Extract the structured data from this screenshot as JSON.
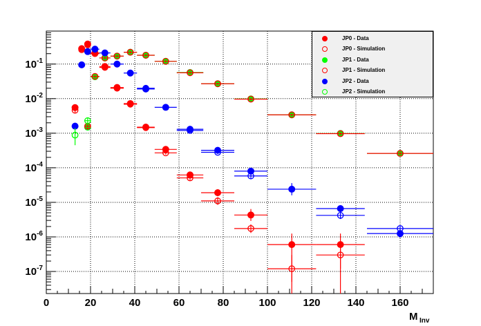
{
  "chart_data": {
    "type": "scatter",
    "xlabel": "M",
    "xlabel_sub": "Inv",
    "ylabel": "",
    "xlim": [
      0,
      175
    ],
    "ylim": [
      2.3e-08,
      0.9
    ],
    "yscale": "log",
    "grid": true,
    "legend_position": "top-right",
    "x_ticks": [
      "0",
      "20",
      "40",
      "60",
      "80",
      "100",
      "120",
      "140",
      "160"
    ],
    "y_ticks": [
      {
        "value": 1e-07,
        "base": "10",
        "exp": "-7"
      },
      {
        "value": 1e-06,
        "base": "10",
        "exp": "-6"
      },
      {
        "value": 1e-05,
        "base": "10",
        "exp": "-5"
      },
      {
        "value": 0.0001,
        "base": "10",
        "exp": "-4"
      },
      {
        "value": 0.001,
        "base": "10",
        "exp": "-3"
      },
      {
        "value": 0.01,
        "base": "10",
        "exp": "-2"
      },
      {
        "value": 0.1,
        "base": "10",
        "exp": "-1"
      }
    ],
    "series": [
      {
        "name": "JP0 - Data",
        "color": "#ff0000",
        "marker": "filled",
        "points": [
          {
            "x": 13,
            "y": 0.0055,
            "xerr": 0,
            "ylo": 0.0045,
            "yhi": 0.0065
          },
          {
            "x": 16,
            "y": 0.28,
            "xerr": 1.5,
            "ylo": 0.25,
            "yhi": 0.31
          },
          {
            "x": 18.7,
            "y": 0.38,
            "xerr": 1.3,
            "ylo": 0.34,
            "yhi": 0.42
          },
          {
            "x": 22,
            "y": 0.21,
            "xerr": 2,
            "ylo": 0.19,
            "yhi": 0.23
          },
          {
            "x": 26.5,
            "y": 0.085,
            "xerr": 2.5,
            "ylo": 0.078,
            "yhi": 0.093
          },
          {
            "x": 32,
            "y": 0.021,
            "xerr": 3,
            "ylo": 0.019,
            "yhi": 0.023
          },
          {
            "x": 38,
            "y": 0.0072,
            "xerr": 3,
            "ylo": 0.0065,
            "yhi": 0.0079
          },
          {
            "x": 45,
            "y": 0.0015,
            "xerr": 4,
            "ylo": 0.0013,
            "yhi": 0.0017
          },
          {
            "x": 54,
            "y": 0.00034,
            "xerr": 5,
            "ylo": 0.0003,
            "yhi": 0.00038
          },
          {
            "x": 65,
            "y": 6.2e-05,
            "xerr": 6,
            "ylo": 5.3e-05,
            "yhi": 7.2e-05
          },
          {
            "x": 77.5,
            "y": 1.9e-05,
            "xerr": 7.5,
            "ylo": 1.5e-05,
            "yhi": 2.4e-05
          },
          {
            "x": 92.5,
            "y": 4.3e-06,
            "xerr": 7.5,
            "ylo": 2.9e-06,
            "yhi": 6.4e-06
          },
          {
            "x": 111,
            "y": 6e-07,
            "xerr": 11,
            "ylo": 2.3e-08,
            "yhi": 1.25e-06
          },
          {
            "x": 133,
            "y": 6e-07,
            "xerr": 11,
            "ylo": 2.3e-08,
            "yhi": 1.25e-06
          }
        ]
      },
      {
        "name": "JP0 - Simulation",
        "color": "#ff0000",
        "marker": "open",
        "points": [
          {
            "x": 13,
            "y": 0.0046,
            "xerr": 0,
            "ylo": 0.0038,
            "yhi": 0.0055
          },
          {
            "x": 16,
            "y": 0.26,
            "xerr": 1.5,
            "ylo": 0.23,
            "yhi": 0.29
          },
          {
            "x": 18.7,
            "y": 0.36,
            "xerr": 1.3,
            "ylo": 0.32,
            "yhi": 0.4
          },
          {
            "x": 22,
            "y": 0.2,
            "xerr": 2,
            "ylo": 0.18,
            "yhi": 0.22
          },
          {
            "x": 26.5,
            "y": 0.08,
            "xerr": 2.5,
            "ylo": 0.073,
            "yhi": 0.088
          },
          {
            "x": 32,
            "y": 0.02,
            "xerr": 3,
            "ylo": 0.018,
            "yhi": 0.022
          },
          {
            "x": 38,
            "y": 0.0069,
            "xerr": 3,
            "ylo": 0.0062,
            "yhi": 0.0076
          },
          {
            "x": 45,
            "y": 0.00145,
            "xerr": 4,
            "ylo": 0.0013,
            "yhi": 0.0016
          },
          {
            "x": 54,
            "y": 0.00027,
            "xerr": 5,
            "ylo": 0.00024,
            "yhi": 0.0003
          },
          {
            "x": 65,
            "y": 5.1e-05,
            "xerr": 6,
            "ylo": 4.4e-05,
            "yhi": 5.9e-05
          },
          {
            "x": 77.5,
            "y": 1.1e-05,
            "xerr": 7.5,
            "ylo": 8.5e-06,
            "yhi": 1.4e-05
          },
          {
            "x": 92.5,
            "y": 1.75e-06,
            "xerr": 7.5,
            "ylo": 1.3e-06,
            "yhi": 2.3e-06
          },
          {
            "x": 111,
            "y": 1.2e-07,
            "xerr": 11,
            "ylo": 5e-08,
            "yhi": 3e-07
          },
          {
            "x": 133,
            "y": 3e-07,
            "xerr": 11,
            "ylo": 1.2e-07,
            "yhi": 6e-07
          }
        ]
      },
      {
        "name": "JP1 - Data",
        "color": "#00ff00",
        "marker": "filled",
        "points": [
          {
            "x": 18.7,
            "y": 0.0015,
            "xerr": 1.3,
            "ylo": 0.0012,
            "yhi": 0.0019
          },
          {
            "x": 22,
            "y": 0.043,
            "xerr": 2,
            "ylo": 0.038,
            "yhi": 0.048
          },
          {
            "x": 26.5,
            "y": 0.15,
            "xerr": 2.5,
            "ylo": 0.135,
            "yhi": 0.165
          },
          {
            "x": 32,
            "y": 0.17,
            "xerr": 3,
            "ylo": 0.155,
            "yhi": 0.185
          },
          {
            "x": 38,
            "y": 0.22,
            "xerr": 3,
            "ylo": 0.2,
            "yhi": 0.24
          },
          {
            "x": 45,
            "y": 0.18,
            "xerr": 4,
            "ylo": 0.165,
            "yhi": 0.195
          },
          {
            "x": 54,
            "y": 0.12,
            "xerr": 5,
            "ylo": 0.11,
            "yhi": 0.13
          },
          {
            "x": 65,
            "y": 0.057,
            "xerr": 6,
            "ylo": 0.052,
            "yhi": 0.062
          },
          {
            "x": 77.5,
            "y": 0.027,
            "xerr": 7.5,
            "ylo": 0.025,
            "yhi": 0.029
          },
          {
            "x": 92.5,
            "y": 0.0098,
            "xerr": 7.5,
            "ylo": 0.009,
            "yhi": 0.0106
          },
          {
            "x": 111,
            "y": 0.0034,
            "xerr": 11,
            "ylo": 0.0031,
            "yhi": 0.0037
          },
          {
            "x": 133,
            "y": 0.00098,
            "xerr": 11,
            "ylo": 0.0009,
            "yhi": 0.00106
          },
          {
            "x": 160,
            "y": 0.00026,
            "xerr": 15,
            "ylo": 0.00023,
            "yhi": 0.00029
          }
        ]
      },
      {
        "name": "JP1 - Simulation",
        "color": "#ff0000",
        "marker": "open",
        "points": [
          {
            "x": 18.7,
            "y": 0.0016,
            "xerr": 1.3,
            "ylo": 0.0013,
            "yhi": 0.002
          },
          {
            "x": 22,
            "y": 0.044,
            "xerr": 2,
            "ylo": 0.039,
            "yhi": 0.049
          },
          {
            "x": 26.5,
            "y": 0.15,
            "xerr": 2.5,
            "ylo": 0.135,
            "yhi": 0.165
          },
          {
            "x": 32,
            "y": 0.17,
            "xerr": 3,
            "ylo": 0.155,
            "yhi": 0.185
          },
          {
            "x": 38,
            "y": 0.22,
            "xerr": 3,
            "ylo": 0.2,
            "yhi": 0.24
          },
          {
            "x": 45,
            "y": 0.18,
            "xerr": 4,
            "ylo": 0.165,
            "yhi": 0.195
          },
          {
            "x": 54,
            "y": 0.12,
            "xerr": 5,
            "ylo": 0.11,
            "yhi": 0.13
          },
          {
            "x": 65,
            "y": 0.056,
            "xerr": 6,
            "ylo": 0.051,
            "yhi": 0.061
          },
          {
            "x": 77.5,
            "y": 0.027,
            "xerr": 7.5,
            "ylo": 0.025,
            "yhi": 0.029
          },
          {
            "x": 92.5,
            "y": 0.0097,
            "xerr": 7.5,
            "ylo": 0.0089,
            "yhi": 0.0105
          },
          {
            "x": 111,
            "y": 0.0034,
            "xerr": 11,
            "ylo": 0.0031,
            "yhi": 0.0037
          },
          {
            "x": 133,
            "y": 0.00097,
            "xerr": 11,
            "ylo": 0.00089,
            "yhi": 0.00105
          },
          {
            "x": 160,
            "y": 0.00026,
            "xerr": 15,
            "ylo": 0.00023,
            "yhi": 0.00029
          }
        ]
      },
      {
        "name": "JP2 - Data",
        "color": "#0000ff",
        "marker": "filled",
        "points": [
          {
            "x": 13,
            "y": 0.0016,
            "xerr": 0,
            "ylo": 0.0013,
            "yhi": 0.002
          },
          {
            "x": 16,
            "y": 0.095,
            "xerr": 1.5,
            "ylo": 0.087,
            "yhi": 0.103
          },
          {
            "x": 18.7,
            "y": 0.23,
            "xerr": 1.3,
            "ylo": 0.21,
            "yhi": 0.25
          },
          {
            "x": 22,
            "y": 0.27,
            "xerr": 2,
            "ylo": 0.25,
            "yhi": 0.29
          },
          {
            "x": 26.5,
            "y": 0.21,
            "xerr": 2.5,
            "ylo": 0.19,
            "yhi": 0.23
          },
          {
            "x": 32,
            "y": 0.1,
            "xerr": 3,
            "ylo": 0.092,
            "yhi": 0.108
          },
          {
            "x": 38,
            "y": 0.055,
            "xerr": 3,
            "ylo": 0.05,
            "yhi": 0.06
          },
          {
            "x": 45,
            "y": 0.019,
            "xerr": 4,
            "ylo": 0.017,
            "yhi": 0.021
          },
          {
            "x": 54,
            "y": 0.0056,
            "xerr": 5,
            "ylo": 0.0051,
            "yhi": 0.0061
          },
          {
            "x": 65,
            "y": 0.0013,
            "xerr": 6,
            "ylo": 0.00118,
            "yhi": 0.00142
          },
          {
            "x": 77.5,
            "y": 0.00032,
            "xerr": 7.5,
            "ylo": 0.00028,
            "yhi": 0.00036
          },
          {
            "x": 92.5,
            "y": 8e-05,
            "xerr": 7.5,
            "ylo": 6.8e-05,
            "yhi": 9.4e-05
          },
          {
            "x": 111,
            "y": 2.4e-05,
            "xerr": 11,
            "ylo": 1.6e-05,
            "yhi": 3.6e-05
          },
          {
            "x": 133,
            "y": 6.6e-06,
            "xerr": 11,
            "ylo": 5.3e-06,
            "yhi": 8.2e-06
          },
          {
            "x": 160,
            "y": 1.25e-06,
            "xerr": 15,
            "ylo": 9.5e-07,
            "yhi": 1.65e-06
          }
        ]
      },
      {
        "name": "JP2 - Simulation",
        "color": "#00ff00",
        "marker": "open",
        "points": [
          {
            "x": 13,
            "y": 0.00088,
            "xerr": 0,
            "ylo": 0.00045,
            "yhi": 0.0014
          },
          {
            "x": 18.7,
            "y": 0.0023,
            "xerr": 1.3,
            "ylo": 0.0019,
            "yhi": 0.0028
          }
        ]
      },
      {
        "name": "",
        "color": "#0000ff",
        "marker": "open",
        "points": [
          {
            "x": 45,
            "y": 0.02,
            "xerr": 4,
            "ylo": 0.018,
            "yhi": 0.022
          },
          {
            "x": 65,
            "y": 0.0012,
            "xerr": 6,
            "ylo": 0.0011,
            "yhi": 0.0013
          },
          {
            "x": 77.5,
            "y": 0.00028,
            "xerr": 7.5,
            "ylo": 0.00025,
            "yhi": 0.00031
          },
          {
            "x": 92.5,
            "y": 5.8e-05,
            "xerr": 7.5,
            "ylo": 4.9e-05,
            "yhi": 6.8e-05
          },
          {
            "x": 133,
            "y": 4.2e-06,
            "xerr": 11,
            "ylo": 3.3e-06,
            "yhi": 5.2e-06
          },
          {
            "x": 160,
            "y": 1.75e-06,
            "xerr": 15,
            "ylo": 1.35e-06,
            "yhi": 2.2e-06
          }
        ]
      }
    ],
    "legend": [
      {
        "label": "JP0 - Data",
        "color": "#ff0000",
        "marker": "filled"
      },
      {
        "label": "JP0 - Simulation",
        "color": "#ff0000",
        "marker": "open"
      },
      {
        "label": "JP1 - Data",
        "color": "#00ff00",
        "marker": "filled"
      },
      {
        "label": "JP1 - Simulation",
        "color": "#ff0000",
        "marker": "open"
      },
      {
        "label": "JP2 - Data",
        "color": "#0000ff",
        "marker": "filled"
      },
      {
        "label": "JP2 - Simulation",
        "color": "#00ff00",
        "marker": "open"
      }
    ]
  }
}
